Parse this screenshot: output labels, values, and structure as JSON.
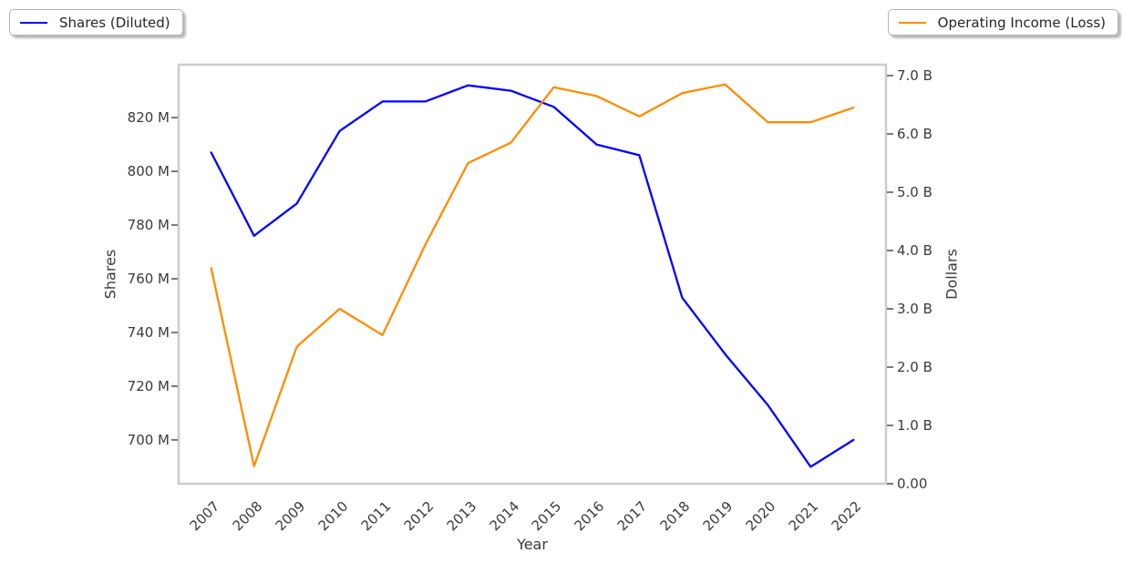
{
  "chart_data": {
    "type": "line",
    "title": "",
    "xlabel": "Year",
    "x": [
      "2007",
      "2008",
      "2009",
      "2010",
      "2011",
      "2012",
      "2013",
      "2014",
      "2015",
      "2016",
      "2017",
      "2018",
      "2019",
      "2020",
      "2021",
      "2022"
    ],
    "series": [
      {
        "name": "Shares (Diluted)",
        "axis": "left",
        "color": "#0000ff",
        "unit": "M",
        "values": [
          807,
          776,
          788,
          815,
          826,
          826,
          832,
          830,
          824,
          810,
          806,
          753,
          732,
          713,
          690,
          700
        ]
      },
      {
        "name": "Operating Income (Loss)",
        "axis": "right",
        "color": "#ff8c00",
        "unit": "B",
        "values": [
          3.7,
          0.3,
          2.35,
          3.0,
          2.55,
          4.1,
          5.5,
          5.85,
          6.8,
          6.65,
          6.3,
          6.7,
          6.85,
          6.2,
          6.2,
          6.45
        ]
      }
    ],
    "left_axis": {
      "label": "Shares",
      "ylim": [
        683.7,
        839.7
      ],
      "ticks": [
        700,
        720,
        740,
        760,
        780,
        800,
        820
      ],
      "tick_labels": [
        "700 M",
        "720 M",
        "740 M",
        "760 M",
        "780 M",
        "800 M",
        "820 M"
      ]
    },
    "right_axis": {
      "label": "Dollars",
      "ylim": [
        0,
        7.1875
      ],
      "ticks": [
        0,
        1,
        2,
        3,
        4,
        5,
        6,
        7
      ],
      "tick_labels": [
        "0.00",
        "1.0 B",
        "2.0 B",
        "3.0 B",
        "4.0 B",
        "5.0 B",
        "6.0 B",
        "7.0 B"
      ]
    },
    "grid": false,
    "legend_positions": [
      "top-left",
      "top-right"
    ]
  },
  "colors": {
    "spine": "#cccccc",
    "tick_mark": "#333333",
    "tick_text": "#3a3a3a",
    "legend_border": "#b5b5b5"
  }
}
